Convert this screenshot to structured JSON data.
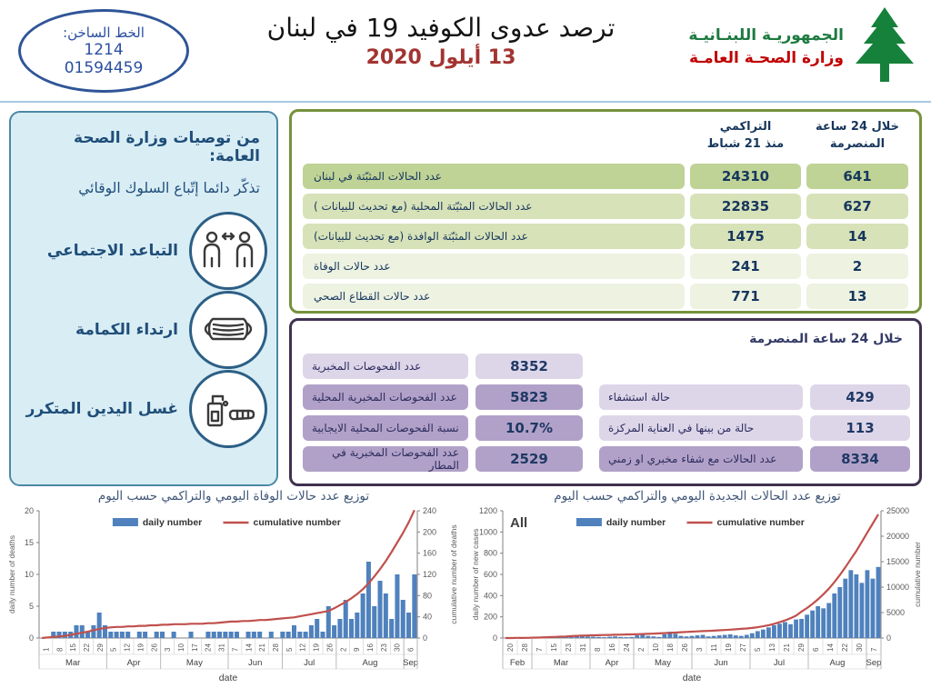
{
  "header": {
    "hotline": {
      "label": "الخط الساخن:",
      "number1": "1214",
      "number2": "01594459"
    },
    "title": "ترصد عدوى الكوفيد 19 في لبنان",
    "date": "13 أيلول 2020",
    "ministry": {
      "line1": "الجمهوريـة اللبنـانيـة",
      "line2": "وزارة الصحـة العامـة"
    }
  },
  "sidebar": {
    "heading": "من توصيات وزارة الصحة العامة:",
    "subheading": "تذكّر دائما إتّباع السلوك الوقائي",
    "items": [
      {
        "label": "التباعد الاجتماعي",
        "icon": "social-distancing-icon"
      },
      {
        "label": "ارتداء الكمامة",
        "icon": "face-mask-icon"
      },
      {
        "label": "غسل اليدين المتكرر",
        "icon": "hand-washing-icon"
      }
    ]
  },
  "stats_table": {
    "columns": {
      "cumulative_line1": "التراكمي",
      "cumulative_line2": "منذ 21 شباط",
      "last24h_line1": "خلال 24 ساعة",
      "last24h_line2": "المنصرمة"
    },
    "rows": [
      {
        "label": "عدد الحالات المثبّتة في لبنان",
        "cumulative": "24310",
        "last24h": "641",
        "tone": "dark"
      },
      {
        "label": "عدد الحالات المثبّتة المحلية  (مع تحديث للبيانات )",
        "cumulative": "22835",
        "last24h": "627",
        "tone": "mid"
      },
      {
        "label": "عدد الحالات المثبّتة الوافدة (مع تحديث للبيانات)",
        "cumulative": "1475",
        "last24h": "14",
        "tone": "mid"
      },
      {
        "label": "عدد حالات الوفاة",
        "cumulative": "241",
        "last24h": "2",
        "tone": "pale"
      },
      {
        "label": "عدد حالات القطاع الصحي",
        "cumulative": "771",
        "last24h": "13",
        "tone": "pale"
      }
    ]
  },
  "tests_table": {
    "heading": "خلال 24 ساعة المنصرمة",
    "left_rows": [
      {
        "label": "عدد الفحوصات المخبرية",
        "value": "8352",
        "tone": "light"
      },
      {
        "label": "عدد الفحوصات المخبرية  المحلية",
        "value": "5823",
        "tone": "dark"
      },
      {
        "label": "نسبة الفحوصات المحلية الايجابية",
        "value": "10.7%",
        "tone": "dark"
      },
      {
        "label": "عدد الفحوصات المخبرية في المطار",
        "value": "2529",
        "tone": "dark"
      }
    ],
    "right_rows": [
      {
        "label": "حالة استشفاء",
        "value": "429",
        "tone": "light"
      },
      {
        "label": "حالة من بينها في العناية المركزة",
        "value": "113",
        "tone": "light"
      },
      {
        "label": "عدد الحالات مع شفاء مخبري او زمني",
        "value": "8334",
        "tone": "dark"
      }
    ]
  },
  "chart_data": [
    {
      "type": "bar",
      "title": "توزيع عدد حالات  الوفاة اليومي والتراكمي حسب اليوم",
      "corner_label": "",
      "xlabel": "date",
      "ylabel": "daily number of deaths",
      "ylabel_right": "cumulative number of deaths",
      "ylim": [
        0,
        20
      ],
      "yticks": [
        0,
        5,
        10,
        15,
        20
      ],
      "ylim_right": [
        0,
        240
      ],
      "yticks_right": [
        0,
        40,
        80,
        120,
        160,
        200,
        240
      ],
      "legend": [
        {
          "name": "daily number",
          "type": "bar"
        },
        {
          "name": "cumulative number",
          "type": "line"
        }
      ],
      "colors": {
        "bar": "#4f81bd",
        "line": "#c0504d"
      },
      "day_ticks": [
        "1",
        "8",
        "15",
        "22",
        "29",
        "5",
        "12",
        "19",
        "26",
        "3",
        "10",
        "17",
        "24",
        "31",
        "7",
        "14",
        "21",
        "28",
        "5",
        "12",
        "19",
        "26",
        "2",
        "9",
        "16",
        "23",
        "30",
        "6"
      ],
      "months": [
        {
          "label": "Mar",
          "ticks": 5
        },
        {
          "label": "Apr",
          "ticks": 4
        },
        {
          "label": "May",
          "ticks": 5
        },
        {
          "label": "Jun",
          "ticks": 4
        },
        {
          "label": "Jul",
          "ticks": 4
        },
        {
          "label": "Aug",
          "ticks": 5
        },
        {
          "label": "Sep",
          "ticks": 1
        }
      ],
      "series": [
        {
          "name": "daily number",
          "type": "bar",
          "axis": "left",
          "values": [
            0,
            0,
            1,
            1,
            1,
            1,
            2,
            2,
            1,
            2,
            4,
            2,
            1,
            1,
            1,
            1,
            0,
            1,
            1,
            0,
            1,
            1,
            0,
            1,
            0,
            0,
            1,
            0,
            0,
            1,
            1,
            1,
            1,
            1,
            1,
            0,
            1,
            1,
            1,
            0,
            1,
            0,
            1,
            1,
            2,
            1,
            1,
            2,
            3,
            1,
            5,
            2,
            3,
            6,
            3,
            4,
            7,
            12,
            5,
            9,
            7,
            3,
            10,
            6,
            4,
            10
          ]
        },
        {
          "name": "cumulative number",
          "type": "line",
          "axis": "right",
          "values": [
            0,
            1,
            2,
            3,
            4,
            6,
            8,
            10,
            12,
            15,
            17,
            19,
            20,
            21,
            21,
            22,
            22,
            23,
            23,
            24,
            24,
            25,
            25,
            26,
            26,
            26,
            27,
            27,
            27,
            28,
            28,
            29,
            30,
            31,
            31,
            32,
            32,
            33,
            34,
            34,
            35,
            36,
            37,
            38,
            39,
            41,
            43,
            45,
            47,
            49,
            51,
            56,
            62,
            68,
            75,
            83,
            92,
            103,
            116,
            130,
            145,
            162,
            180,
            198,
            218,
            241
          ]
        }
      ]
    },
    {
      "type": "bar",
      "title": "توزيع عدد الحالات الجديدة اليومي والتراكمي حسب اليوم",
      "corner_label": "All",
      "xlabel": "date",
      "ylabel": "daily number of new cases",
      "ylabel_right": "cumulative number",
      "ylim": [
        0,
        1200
      ],
      "yticks": [
        0,
        200,
        400,
        600,
        800,
        1000,
        1200
      ],
      "ylim_right": [
        0,
        25000
      ],
      "yticks_right": [
        0,
        5000,
        10000,
        15000,
        20000,
        25000
      ],
      "legend": [
        {
          "name": "daily number",
          "type": "bar"
        },
        {
          "name": "cumulative number",
          "type": "line"
        }
      ],
      "colors": {
        "bar": "#4f81bd",
        "line": "#c0504d"
      },
      "day_ticks": [
        "20",
        "28",
        "7",
        "15",
        "23",
        "31",
        "8",
        "16",
        "24",
        "2",
        "10",
        "18",
        "26",
        "3",
        "11",
        "19",
        "27",
        "5",
        "13",
        "21",
        "29",
        "6",
        "14",
        "22",
        "30",
        "7"
      ],
      "months": [
        {
          "label": "Feb",
          "ticks": 2
        },
        {
          "label": "Mar",
          "ticks": 4
        },
        {
          "label": "Apr",
          "ticks": 3
        },
        {
          "label": "May",
          "ticks": 4
        },
        {
          "label": "Jun",
          "ticks": 4
        },
        {
          "label": "Jul",
          "ticks": 4
        },
        {
          "label": "Aug",
          "ticks": 4
        },
        {
          "label": "Sep",
          "ticks": 1
        }
      ],
      "series": [
        {
          "name": "daily number",
          "type": "bar",
          "axis": "left",
          "values": [
            1,
            2,
            3,
            5,
            8,
            10,
            12,
            15,
            12,
            10,
            8,
            12,
            15,
            18,
            20,
            15,
            12,
            10,
            8,
            12,
            15,
            10,
            8,
            10,
            25,
            30,
            20,
            15,
            10,
            35,
            60,
            40,
            20,
            15,
            20,
            25,
            30,
            15,
            20,
            25,
            30,
            35,
            25,
            20,
            30,
            45,
            65,
            80,
            100,
            120,
            135,
            150,
            130,
            175,
            180,
            220,
            260,
            300,
            280,
            330,
            420,
            480,
            560,
            640,
            600,
            520,
            640,
            560,
            670
          ]
        },
        {
          "name": "cumulative number",
          "type": "line",
          "axis": "right",
          "values": [
            0,
            3,
            10,
            22,
            40,
            65,
            95,
            130,
            170,
            215,
            260,
            310,
            368,
            430,
            466,
            500,
            530,
            558,
            584,
            610,
            636,
            662,
            688,
            714,
            745,
            780,
            820,
            865,
            910,
            960,
            1015,
            1075,
            1140,
            1200,
            1250,
            1300,
            1350,
            1400,
            1450,
            1510,
            1570,
            1640,
            1720,
            1800,
            1870,
            1990,
            2130,
            2300,
            2520,
            2790,
            3100,
            3470,
            3900,
            4400,
            5200,
            5900,
            6700,
            7600,
            8600,
            9700,
            11000,
            12400,
            13900,
            15500,
            17100,
            18900,
            20700,
            22500,
            24310
          ]
        }
      ]
    }
  ]
}
